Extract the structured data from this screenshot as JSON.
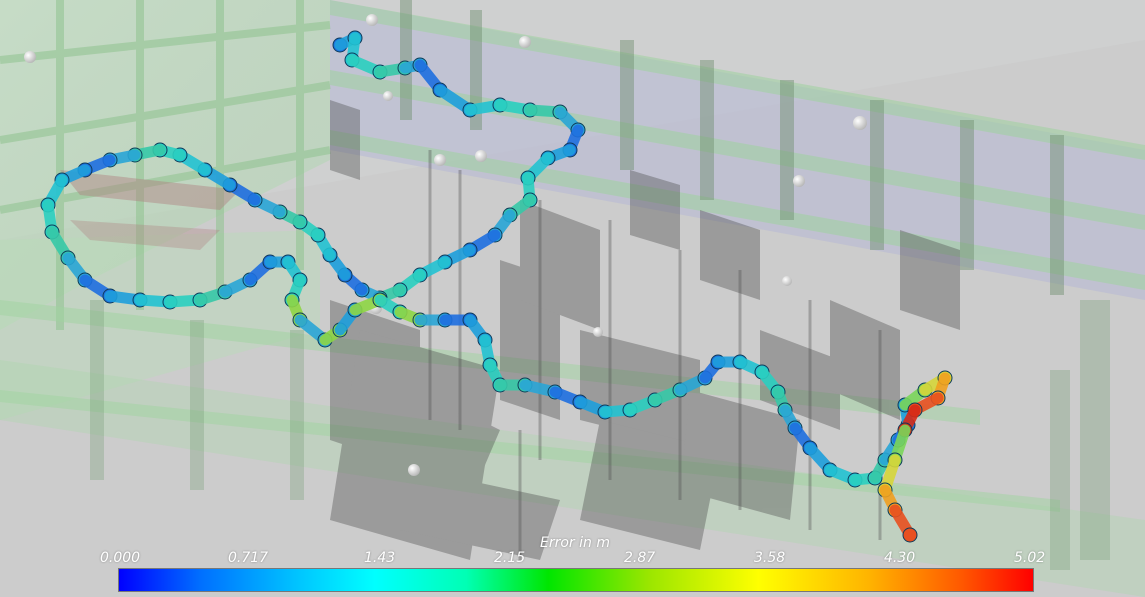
{
  "colorbar": {
    "title": "Error in m",
    "ticks": [
      "0.000",
      "0.717",
      "1.43",
      "2.15",
      "2.87",
      "3.58",
      "4.30",
      "5.02"
    ],
    "min": 0.0,
    "max": 5.02,
    "colors": [
      "#0000ff",
      "#00c8ff",
      "#00ffff",
      "#00e600",
      "#ffff00",
      "#ffb400",
      "#ff0000"
    ]
  },
  "scene": {
    "background": "#cfd0d0",
    "wall_frame_color": "#9fd39f",
    "partition_color": "#4c4c4c",
    "window_panel_color": "#b7b8d6",
    "anchor_color": "#ffffff"
  }
}
